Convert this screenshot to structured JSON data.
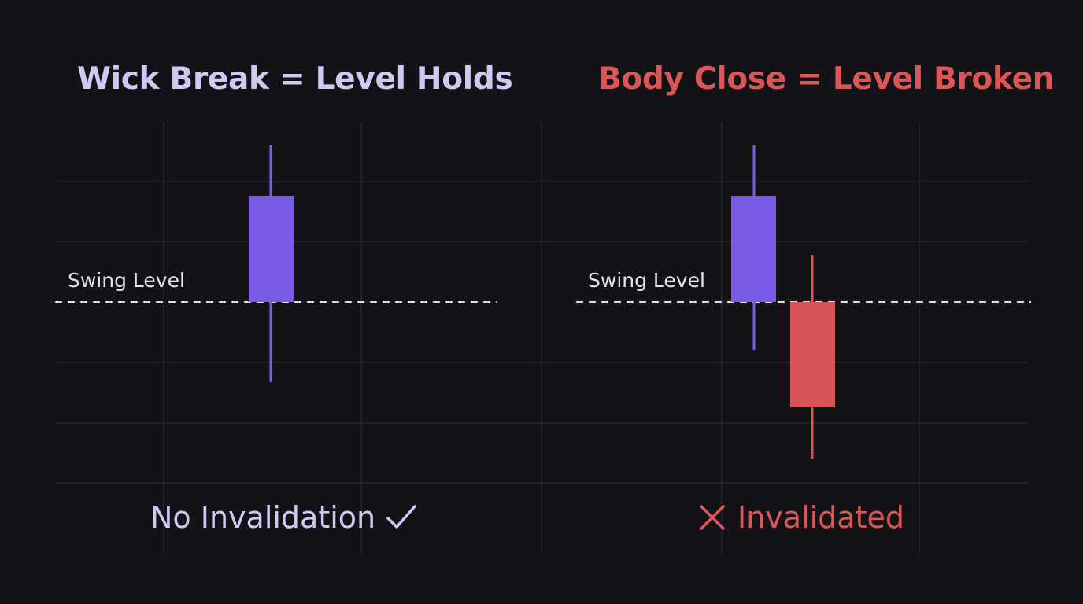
{
  "colors": {
    "background": "#131217",
    "grid": "#26252d",
    "bullish": "#7c5ce6",
    "bearish": "#d95454",
    "title_left": "#d3c8f2",
    "title_right": "#db5757",
    "caption_left": "#d3c8f2",
    "caption_right": "#db5757",
    "level_line": "#dcdcdc",
    "label_text": "#e4e2ec"
  },
  "left_panel": {
    "title": "Wick Break = Level Holds",
    "level_label": "Swing Level",
    "caption": "No Invalidation",
    "caption_icon": "check-icon"
  },
  "right_panel": {
    "title": "Body Close = Level Broken",
    "level_label": "Swing Level",
    "caption": "Invalidated",
    "caption_icon": "cross-icon"
  }
}
